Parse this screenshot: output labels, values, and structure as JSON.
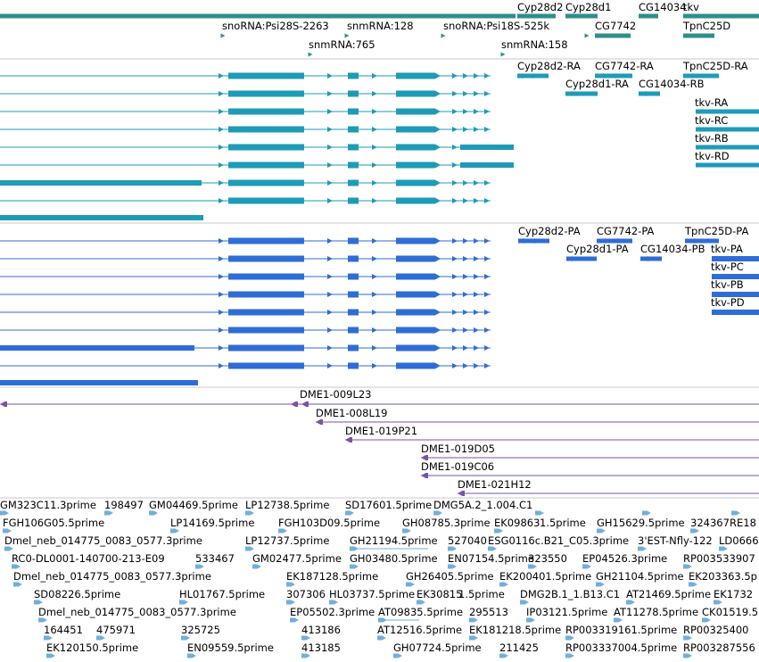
{
  "colors": {
    "gene": "#2f8f8a",
    "transcript": "#1e9bb7",
    "protein": "#2f6dd6",
    "clone": "#7a52a8",
    "est": "#6fb0dc",
    "divider": "#c8c8c8"
  },
  "gene_labels": {
    "cyp28d2": "Cyp28d2",
    "cyp28d1": "Cyp28d1",
    "cg14034": "CG14034",
    "tkv": "tkv",
    "cg7742": "CG7742",
    "tpnc25d": "TpnC25D",
    "psi28s": "snoRNA:Psi28S-2263",
    "snmrna128": "snmRNA:128",
    "psi18s": "snoRNA:Psi18S-525k",
    "snmrna765": "snmRNA:765",
    "snmrna158": "snmRNA:158"
  },
  "transcript_labels": {
    "cyp28d2_ra": "Cyp28d2-RA",
    "cg7742_ra": "CG7742-RA",
    "tpnc25d_ra": "TpnC25D-RA",
    "cyp28d1_ra": "Cyp28d1-RA",
    "cg14034_rb": "CG14034-RB",
    "tkv_ra": "tkv-RA",
    "tkv_rc": "tkv-RC",
    "tkv_rb": "tkv-RB",
    "tkv_rd": "tkv-RD"
  },
  "protein_labels": {
    "cyp28d2_pa": "Cyp28d2-PA",
    "cg7742_pa": "CG7742-PA",
    "tpnc25d_pa": "TpnC25D-PA",
    "cyp28d1_pa": "Cyp28d1-PA",
    "cg14034_pb": "CG14034-PB",
    "tkv_pa": "tkv-PA",
    "tkv_pc": "tkv-PC",
    "tkv_pb": "tkv-PB",
    "tkv_pd": "tkv-PD"
  },
  "clone_labels": {
    "c1": "DME1-009L23",
    "c2": "DME1-008L19",
    "c3": "DME1-019P21",
    "c4": "DME1-019D05",
    "c5": "DME1-019C06",
    "c6": "DME1-021H12"
  },
  "est_labels": {
    "e001": "GM323C11.3prime",
    "e002": "198497",
    "e003": "GM04469.5prime",
    "e004": "LP12738.5prime",
    "e005": "SD17601.5prime",
    "e006": "DMG5A.2_1.004.C1",
    "e007": "FGH106G05.5prime",
    "e008": "LP14169.5prime",
    "e009": "FGH103D09.5prime",
    "e010": "GH08785.3prime",
    "e011": "EK09863",
    "e012": "1.5prime",
    "e013": "GH15629.5prime",
    "e014": "324367",
    "e015": "RE18",
    "e016": "Dmel_neb_014775_0083_0577.3prime",
    "e017": "LP12737.5prime",
    "e018": "GH21194.5prime",
    "e019": "527040",
    "e020": "ESG0116c.B21_C05.3prime",
    "e021": "3'EST-Nfly-122",
    "e022": "LD0666",
    "e023": "RC0-DL0001-140700-213-E09",
    "e024": "533467",
    "e025": "GM02477.5prime",
    "e026": "GH03480.5prime",
    "e027": "EN07154.5prime",
    "e028": "323550",
    "e029": "EP04526.3prime",
    "e030": "RP003533907",
    "e031": "Dmel_neb_014775_0083_0577.3prime",
    "e032": "EK187128.5prime",
    "e033": "GH26405.5prime",
    "e034": "EK200401.5prime",
    "e035": "GH21104.5prime",
    "e036": "EK203363.5p",
    "e037": "SD08226.5prime",
    "e038": "HL01767.5prime",
    "e039": "307306",
    "e040": "HL03737.5prime",
    "e041": "EK30815",
    "e042": "1.5prime",
    "e043": "DMG2B.1_1.B13.C1",
    "e044": "AT21469.5prime",
    "e045": "EK1732",
    "e046": "Dmel_neb_014775_0083_0577.3prime",
    "e047": "EP05502.3prime",
    "e048": "AT09835.5prime",
    "e049": "295513",
    "e050": "IP03121.5prime",
    "e051": "AT11278.5prime",
    "e052": "CK01519.5",
    "e053": "164451",
    "e054": "475971",
    "e055": "325725",
    "e056": "413186",
    "e057": "AT12516.5prime",
    "e058": "EK181218.5prime",
    "e059": "RP003319161.5prime",
    "e060": "RP00325400",
    "e061": "EK120150.5prime",
    "e062": "EN09559.5prime",
    "e063": "413185",
    "e064": "GH07724.5prime",
    "e065": "211425",
    "e066": "RP003337004.5prime",
    "e067": "RP003287556"
  }
}
